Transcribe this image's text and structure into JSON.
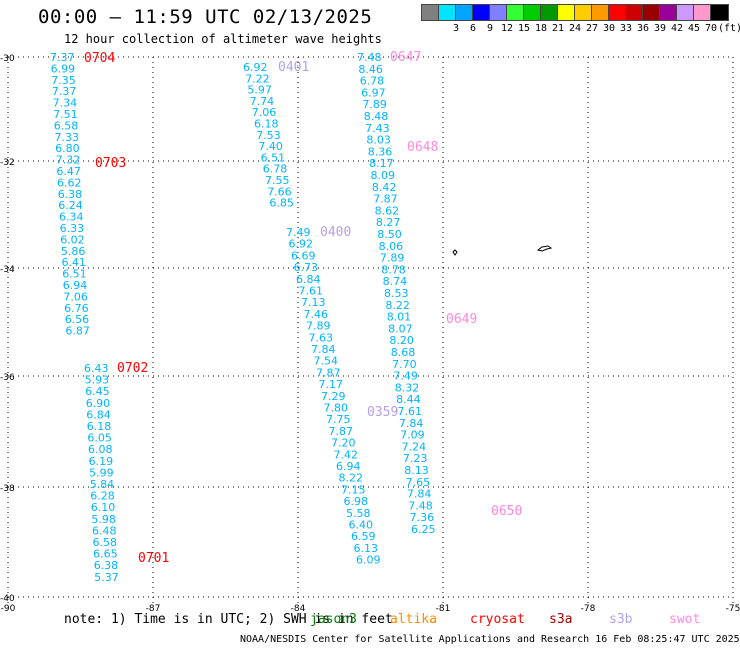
{
  "title": "00:00 — 11:59 UTC 02/13/2025",
  "subtitle": "12 hour collection of altimeter wave heights",
  "legend": {
    "unit": "(ft)",
    "items": [
      {
        "color": "#808080",
        "label": ""
      },
      {
        "color": "#00e5ff",
        "label": "3"
      },
      {
        "color": "#00a5ff",
        "label": "6"
      },
      {
        "color": "#0000ff",
        "label": "9"
      },
      {
        "color": "#7f7fff",
        "label": "12"
      },
      {
        "color": "#33ff33",
        "label": "15"
      },
      {
        "color": "#00cc00",
        "label": "18"
      },
      {
        "color": "#009900",
        "label": "21"
      },
      {
        "color": "#ffff00",
        "label": "24"
      },
      {
        "color": "#ffcc00",
        "label": "27"
      },
      {
        "color": "#ff9900",
        "label": "30"
      },
      {
        "color": "#ff0000",
        "label": "33"
      },
      {
        "color": "#cc0000",
        "label": "36"
      },
      {
        "color": "#990000",
        "label": "39"
      },
      {
        "color": "#990099",
        "label": "42"
      },
      {
        "color": "#cc99ff",
        "label": "45"
      },
      {
        "color": "#ff99cc",
        "label": "70"
      },
      {
        "color": "#000000",
        "label": ""
      }
    ]
  },
  "axes": {
    "lat_ticks": [
      "-30",
      "-32",
      "-34",
      "-36",
      "-38",
      "-40"
    ],
    "lon_ticks": [
      "-90",
      "-87",
      "-84",
      "-81",
      "-78",
      "-75"
    ]
  },
  "satellites": [
    {
      "name": "jason3",
      "color": "#008000"
    },
    {
      "name": "altika",
      "color": "#ff8c00"
    },
    {
      "name": "cryosat",
      "color": "#ff0000"
    },
    {
      "name": "s3a",
      "color": "#a00000"
    },
    {
      "name": "s3b",
      "color": "#b4a0e6"
    },
    {
      "name": "swot",
      "color": "#ff88dd"
    }
  ],
  "note_text": "note: 1) Time is in UTC; 2) SWH is in feet",
  "credit": "NOAA/NESDIS Center for Satellite Applications and Research   16 Feb 08:25:47 UTC 2025",
  "wave_color": "#00b4ff",
  "tracks": [
    {
      "x0": 50,
      "y0": 57,
      "dx": 0.64,
      "dy": 11.4,
      "values": [
        "7.37",
        "6.99",
        "7.35",
        "7.37",
        "7.34",
        "7.51",
        "6.58",
        "7.33",
        "6.80",
        "7.32",
        "6.47",
        "6.62",
        "6.38",
        "6.24",
        "6.34",
        "6.33",
        "6.02",
        "5.86",
        "6.41",
        "6.51",
        "6.94",
        "7.06",
        "6.76",
        "6.56",
        "6.87"
      ]
    },
    {
      "x0": 84,
      "y0": 368,
      "dx": 0.57,
      "dy": 11.6,
      "values": [
        "6.43",
        "5.93",
        "6.45",
        "6.90",
        "6.84",
        "6.18",
        "6.05",
        "6.08",
        "6.19",
        "5.99",
        "5.84",
        "6.28",
        "6.10",
        "5.98",
        "6.48",
        "6.58",
        "6.65",
        "6.38",
        "5.37"
      ]
    },
    {
      "x0": 243,
      "y0": 67,
      "dx": 2.2,
      "dy": 11.3,
      "values": [
        "6.92",
        "7.22",
        "5.97",
        "7.74",
        "7.06",
        "6.18",
        "7.53",
        "7.40",
        "6.51",
        "6.78",
        "7.55",
        "7.66",
        "6.85"
      ]
    },
    {
      "x0": 286,
      "y0": 232,
      "dx": 2.5,
      "dy": 11.7,
      "values": [
        "7.49",
        "6.92",
        "6.69",
        "6.73",
        "6.84",
        "7.61",
        "7.13",
        "7.46",
        "7.89",
        "7.63",
        "7.84",
        "7.54",
        "7.87",
        "7.17",
        "7.29",
        "7.80",
        "7.75",
        "7.87",
        "7.20",
        "7.42",
        "6.94",
        "8.22",
        "7.15",
        "6.98",
        "5.58",
        "6.40",
        "6.59",
        "6.13",
        "6.09"
      ]
    },
    {
      "x0": 357,
      "y0": 57,
      "dx": 1.35,
      "dy": 11.8,
      "values": [
        "7.48",
        "8.46",
        "6.78",
        "6.97",
        "7.89",
        "8.48",
        "7.43",
        "8.03",
        "8.36",
        "8.17",
        "8.09",
        "8.42",
        "7.87",
        "8.62",
        "8.27",
        "8.50",
        "8.06",
        "7.89",
        "8.78",
        "8.74",
        "8.53",
        "8.22",
        "8.01",
        "8.07",
        "8.20",
        "8.68",
        "7.70",
        "7.49",
        "8.32",
        "8.44",
        "7.61",
        "7.84",
        "7.09",
        "7.24",
        "7.23",
        "8.13",
        "7.65",
        "7.84",
        "7.48",
        "7.36",
        "6.25"
      ]
    }
  ],
  "time_labels": [
    {
      "text": "0704",
      "sat": "cryosat"
    },
    {
      "text": "0703",
      "sat": "cryosat"
    },
    {
      "text": "0702",
      "sat": "cryosat"
    },
    {
      "text": "0701",
      "sat": "cryosat"
    },
    {
      "text": "0401",
      "sat": "s3b"
    },
    {
      "text": "0400",
      "sat": "s3b"
    },
    {
      "text": "0359",
      "sat": "s3b"
    },
    {
      "text": "0647",
      "sat": "swot"
    },
    {
      "text": "0648",
      "sat": "swot"
    },
    {
      "text": "0649",
      "sat": "swot"
    },
    {
      "text": "0650",
      "sat": "swot"
    }
  ]
}
